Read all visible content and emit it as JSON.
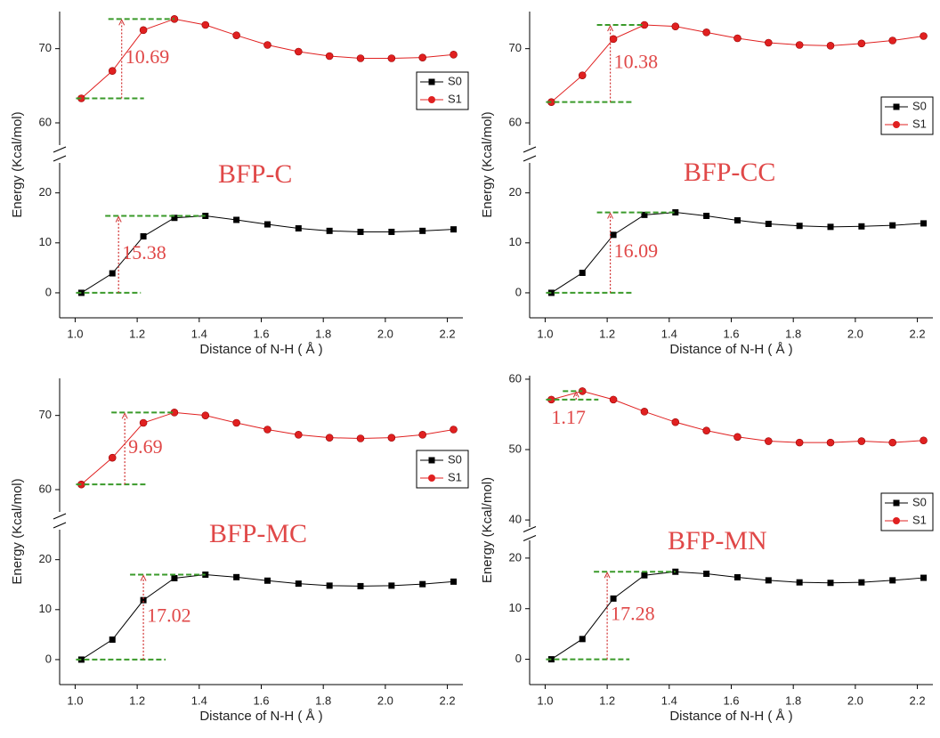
{
  "chart_data": [
    {
      "type": "line",
      "label": "BFP-C",
      "s1_gap": "10.69",
      "s0_gap": "15.38",
      "xlabel": "Distance of N-H ( Å )",
      "ylabel": "Energy (Kcal/mol)",
      "x": [
        1.02,
        1.12,
        1.22,
        1.32,
        1.42,
        1.52,
        1.62,
        1.72,
        1.82,
        1.92,
        2.02,
        2.12,
        2.22
      ],
      "xlim": [
        0.95,
        2.25
      ],
      "xticks": [
        {
          "value": 1,
          "label": "1.0"
        },
        1.2,
        1.4,
        1.6,
        1.8,
        {
          "value": 2,
          "label": "2.0"
        },
        2.2
      ],
      "ylim": [
        -5,
        26
      ],
      "yticks": [
        0,
        10,
        20
      ],
      "y2lim": [
        57,
        75
      ],
      "y2ticks": [
        60,
        70
      ],
      "series": [
        {
          "name": "S0",
          "color": "#000000",
          "values": [
            0,
            3.9,
            11.3,
            15.0,
            15.4,
            14.6,
            13.7,
            12.9,
            12.4,
            12.2,
            12.2,
            12.4,
            12.7
          ]
        },
        {
          "name": "S1",
          "color": "#e02020",
          "axis": "y2",
          "values": [
            63.3,
            67.0,
            72.5,
            74.0,
            73.2,
            71.8,
            70.5,
            69.6,
            69.0,
            68.7,
            68.7,
            68.8,
            69.2
          ]
        }
      ]
    },
    {
      "type": "line",
      "label": "BFP-CC",
      "s1_gap": "10.38",
      "s0_gap": "16.09",
      "xlabel": "Distance of N-H ( Å )",
      "ylabel": "Energy (Kcal/mol)",
      "x": [
        1.02,
        1.12,
        1.22,
        1.32,
        1.42,
        1.52,
        1.62,
        1.72,
        1.82,
        1.92,
        2.02,
        2.12,
        2.22
      ],
      "xlim": [
        0.95,
        2.25
      ],
      "xticks": [
        {
          "value": 1,
          "label": "1.0"
        },
        1.2,
        1.4,
        1.6,
        1.8,
        {
          "value": 2,
          "label": "2.0"
        },
        2.2
      ],
      "ylim": [
        -5,
        26
      ],
      "yticks": [
        0,
        10,
        20
      ],
      "y2lim": [
        57,
        75
      ],
      "y2ticks": [
        60,
        70
      ],
      "series": [
        {
          "name": "S0",
          "color": "#000000",
          "values": [
            0,
            4.0,
            11.6,
            15.6,
            16.1,
            15.4,
            14.5,
            13.8,
            13.4,
            13.2,
            13.3,
            13.5,
            13.9
          ]
        },
        {
          "name": "S1",
          "color": "#e02020",
          "axis": "y2",
          "values": [
            62.8,
            66.4,
            71.3,
            73.2,
            73.0,
            72.2,
            71.4,
            70.8,
            70.5,
            70.4,
            70.7,
            71.1,
            71.7
          ]
        }
      ]
    },
    {
      "type": "line",
      "label": "BFP-MC",
      "s1_gap": "9.69",
      "s0_gap": "17.02",
      "xlabel": "Distance of N-H ( Å )",
      "ylabel": "Energy (Kcal/mol)",
      "x": [
        1.02,
        1.12,
        1.22,
        1.32,
        1.42,
        1.52,
        1.62,
        1.72,
        1.82,
        1.92,
        2.02,
        2.12,
        2.22
      ],
      "xlim": [
        0.95,
        2.25
      ],
      "xticks": [
        {
          "value": 1,
          "label": "1.0"
        },
        1.2,
        1.4,
        1.6,
        1.8,
        {
          "value": 2,
          "label": "2.0"
        },
        2.2
      ],
      "ylim": [
        -5,
        26
      ],
      "yticks": [
        0,
        10,
        20
      ],
      "y2lim": [
        57,
        75
      ],
      "y2ticks": [
        60,
        70
      ],
      "series": [
        {
          "name": "S0",
          "color": "#000000",
          "values": [
            0,
            4.0,
            11.9,
            16.3,
            17.0,
            16.5,
            15.8,
            15.2,
            14.8,
            14.7,
            14.8,
            15.1,
            15.6
          ]
        },
        {
          "name": "S1",
          "color": "#e02020",
          "axis": "y2",
          "values": [
            60.7,
            64.3,
            69.0,
            70.4,
            70.0,
            69.0,
            68.1,
            67.4,
            67.0,
            66.9,
            67.0,
            67.4,
            68.1
          ]
        }
      ]
    },
    {
      "type": "line",
      "label": "BFP-MN",
      "s1_gap": "1.17",
      "s0_gap": "17.28",
      "xlabel": "Distance of N-H ( Å )",
      "ylabel": "Energy (Kcal/mol)",
      "x": [
        1.02,
        1.12,
        1.22,
        1.32,
        1.42,
        1.52,
        1.62,
        1.72,
        1.82,
        1.92,
        2.02,
        2.12,
        2.22
      ],
      "xlim": [
        0.95,
        2.25
      ],
      "xticks": [
        {
          "value": 1,
          "label": "1.0"
        },
        1.2,
        1.4,
        1.6,
        1.8,
        {
          "value": 2,
          "label": "2.0"
        },
        2.2
      ],
      "ylim": [
        -5,
        23.5
      ],
      "yticks": [
        0,
        10,
        20
      ],
      "y2lim": [
        39,
        60.5
      ],
      "y2ticks": [
        40,
        50,
        60
      ],
      "series": [
        {
          "name": "S0",
          "color": "#000000",
          "values": [
            0,
            4.0,
            12.0,
            16.6,
            17.3,
            16.9,
            16.2,
            15.6,
            15.2,
            15.1,
            15.2,
            15.6,
            16.1
          ]
        },
        {
          "name": "S1",
          "color": "#e02020",
          "axis": "y2",
          "values": [
            57.1,
            58.3,
            57.1,
            55.4,
            53.9,
            52.7,
            51.8,
            51.2,
            51.0,
            51.0,
            51.2,
            51.0,
            51.3
          ]
        }
      ]
    }
  ]
}
